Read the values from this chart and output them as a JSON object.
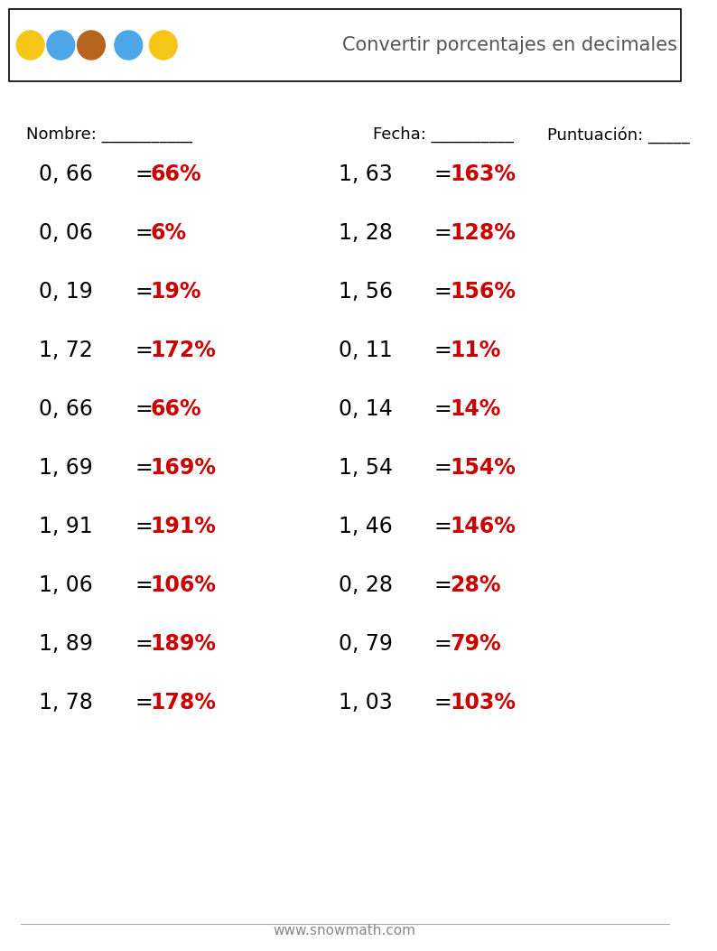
{
  "title": "Convertir porcentajes en decimales",
  "header_label": "Nombre: ___________",
  "fecha_label": "Fecha: __________",
  "puntuacion_label": "Puntuación: _____",
  "left_questions": [
    {
      "decimal": "0, 66",
      "answer": "66%"
    },
    {
      "decimal": "0, 06",
      "answer": "6%"
    },
    {
      "decimal": "0, 19",
      "answer": "19%"
    },
    {
      "decimal": "1, 72",
      "answer": "172%"
    },
    {
      "decimal": "0, 66",
      "answer": "66%"
    },
    {
      "decimal": "1, 69",
      "answer": "169%"
    },
    {
      "decimal": "1, 91",
      "answer": "191%"
    },
    {
      "decimal": "1, 06",
      "answer": "106%"
    },
    {
      "decimal": "1, 89",
      "answer": "189%"
    },
    {
      "decimal": "1, 78",
      "answer": "178%"
    }
  ],
  "right_questions": [
    {
      "decimal": "1, 63",
      "answer": "163%"
    },
    {
      "decimal": "1, 28",
      "answer": "128%"
    },
    {
      "decimal": "1, 56",
      "answer": "156%"
    },
    {
      "decimal": "0, 11",
      "answer": "11%"
    },
    {
      "decimal": "0, 14",
      "answer": "14%"
    },
    {
      "decimal": "1, 54",
      "answer": "154%"
    },
    {
      "decimal": "1, 46",
      "answer": "146%"
    },
    {
      "decimal": "0, 28",
      "answer": "28%"
    },
    {
      "decimal": "0, 79",
      "answer": "79%"
    },
    {
      "decimal": "1, 03",
      "answer": "103%"
    }
  ],
  "bg_color": "#ffffff",
  "text_color": "#000000",
  "answer_color": "#cc0000",
  "title_color": "#555555",
  "footer_text": "www.snowmath.com",
  "header_box_color": "#000000",
  "font_size_questions": 17,
  "font_size_header": 13,
  "font_size_title": 15,
  "font_size_footer": 11
}
